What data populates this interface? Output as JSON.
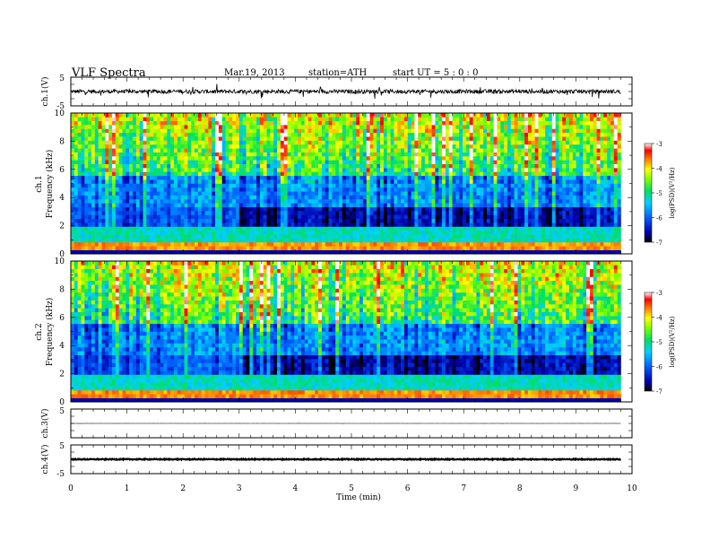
{
  "header": {
    "title": "VLF  Spectra",
    "date": "Mar.19, 2013",
    "station": "station=ATH",
    "start": "start  UT  =   5  : 0  : 0"
  },
  "chart_data": [
    {
      "type": "line",
      "panel": "ch1-waveform",
      "ylabel": "ch.1(V)",
      "ylim": [
        -5,
        5
      ],
      "yticks": [
        5,
        -5
      ],
      "xlim": [
        0,
        10
      ],
      "trace": {
        "mean": 0.0,
        "amplitude": 1.4,
        "end_min": 9.8
      }
    },
    {
      "type": "heatmap",
      "panel": "ch1-spectrogram",
      "ylabel": [
        "ch.1",
        "Frequency  (kHz)"
      ],
      "ylim": [
        0,
        10
      ],
      "yticks": [
        0,
        2,
        4,
        6,
        8,
        10
      ],
      "xlim": [
        0,
        10
      ],
      "colorbar": {
        "label": "log(PSD)(V²/Hz)",
        "range": [
          -7,
          -3
        ],
        "ticks": [
          -3,
          -4,
          -5,
          -6,
          -7
        ]
      },
      "data_end_min": 9.8
    },
    {
      "type": "heatmap",
      "panel": "ch2-spectrogram",
      "ylabel": [
        "ch.2",
        "Frequency  (kHz)"
      ],
      "ylim": [
        0,
        10
      ],
      "yticks": [
        0,
        2,
        4,
        6,
        8,
        10
      ],
      "xlim": [
        0,
        10
      ],
      "colorbar": {
        "label": "log(PSD)(V²/Hz)",
        "range": [
          -7,
          -3
        ],
        "ticks": [
          -3,
          -4,
          -5,
          -6,
          -7
        ]
      },
      "data_end_min": 9.8
    },
    {
      "type": "line",
      "panel": "ch3-waveform",
      "ylabel": "ch.3(V)",
      "ylim": [
        -5,
        5
      ],
      "yticks": [
        5
      ],
      "xlim": [
        0,
        10
      ],
      "trace": {
        "mean": 0.0,
        "amplitude": 0.05,
        "end_min": 9.8
      }
    },
    {
      "type": "line",
      "panel": "ch4-waveform",
      "ylabel": "ch.4(V)",
      "ylim": [
        -5,
        5
      ],
      "yticks": [
        5,
        -5
      ],
      "xlim": [
        0,
        10
      ],
      "xlabel": "Time  (min)",
      "xticks": [
        0,
        1,
        2,
        3,
        4,
        5,
        6,
        7,
        8,
        9,
        10
      ],
      "trace": {
        "mean": 0.0,
        "amplitude": 0.3,
        "end_min": 9.8
      }
    }
  ]
}
